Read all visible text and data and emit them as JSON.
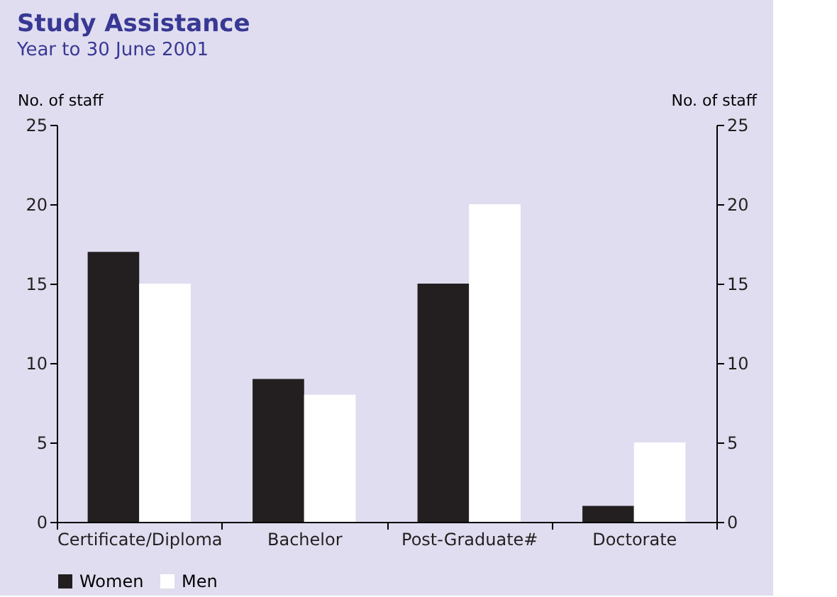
{
  "chart_data": {
    "type": "bar",
    "title": "Study Assistance",
    "subtitle": "Year to 30 June 2001",
    "categories": [
      "Certificate/Diploma",
      "Bachelor",
      "Post-Graduate#",
      "Doctorate"
    ],
    "series": [
      {
        "name": "Women",
        "color": "#231f20",
        "values": [
          17,
          9,
          15,
          1
        ]
      },
      {
        "name": "Men",
        "color": "#ffffff",
        "values": [
          15,
          8,
          20,
          5
        ]
      }
    ],
    "ylabel": "No. of staff",
    "y2label": "No. of staff",
    "ylim": [
      0,
      25
    ],
    "yticks": [
      0,
      5,
      10,
      15,
      20,
      25
    ],
    "y2lim": [
      0,
      25
    ],
    "y2ticks": [
      0,
      5,
      10,
      15,
      20,
      25
    ],
    "legend": "bottom",
    "grid": false
  }
}
